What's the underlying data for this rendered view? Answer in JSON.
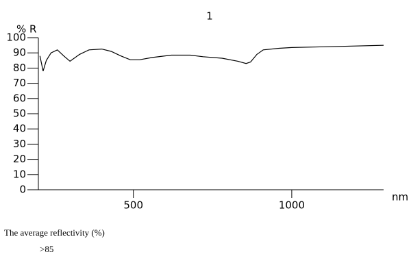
{
  "chart_data": {
    "type": "line",
    "title": "1",
    "ylabel": "% R",
    "xlabel": "nm",
    "x": [
      205,
      215,
      225,
      240,
      260,
      280,
      300,
      330,
      360,
      400,
      430,
      460,
      490,
      520,
      560,
      620,
      680,
      720,
      780,
      830,
      856,
      870,
      890,
      910,
      960,
      1000,
      1100,
      1200,
      1290
    ],
    "values": [
      88,
      78,
      85,
      90,
      92,
      88,
      84.5,
      89,
      92,
      92.5,
      91,
      88,
      85.5,
      85.5,
      87,
      88.5,
      88.5,
      87.5,
      86.5,
      84.5,
      83,
      84,
      89,
      92,
      93,
      93.5,
      94,
      94.5,
      95
    ],
    "color": "#000000",
    "xlim": [
      200,
      1290
    ],
    "xticks": [
      500,
      1000
    ],
    "ylim": [
      0,
      100
    ],
    "yticks": [
      0,
      10,
      20,
      30,
      40,
      50,
      60,
      70,
      80,
      90,
      100
    ]
  },
  "notes": {
    "caption": "The average reflectivity (%)",
    "value": ">85"
  }
}
